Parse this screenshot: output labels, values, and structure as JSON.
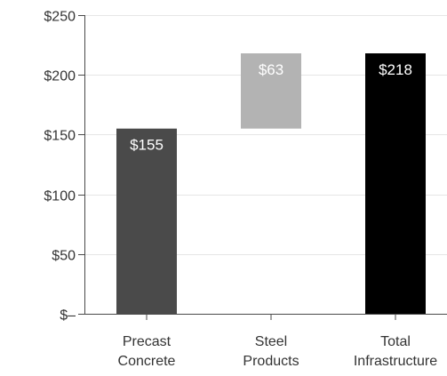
{
  "chart_data": {
    "type": "bar",
    "subtype": "waterfall",
    "title": "",
    "xlabel": "",
    "ylabel": "",
    "categories": [
      [
        "Precast",
        "Concrete"
      ],
      [
        "Steel",
        "Products"
      ],
      [
        "Total",
        "Infrastructure"
      ]
    ],
    "bars": [
      {
        "base": 0,
        "value": 155,
        "label": "$155",
        "color": "#4a4a4a",
        "label_color": "#ffffff"
      },
      {
        "base": 155,
        "value": 63,
        "label": "$63",
        "color": "#b3b3b3",
        "label_color": "#ffffff"
      },
      {
        "base": 0,
        "value": 218,
        "label": "$218",
        "color": "#000000",
        "label_color": "#ffffff"
      }
    ],
    "ylim": [
      0,
      250
    ],
    "yticks": [
      0,
      50,
      100,
      150,
      200,
      250
    ],
    "ytick_labels": [
      "$–",
      "$50",
      "$100",
      "$150",
      "$200",
      "$250"
    ],
    "grid": true,
    "colors": {
      "grid": "#e6e6e6",
      "axis": "#4a4a4a",
      "tick_text": "#333333"
    }
  }
}
